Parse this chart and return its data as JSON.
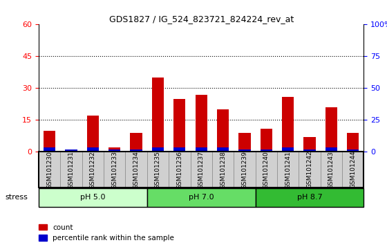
{
  "title": "GDS1827 / IG_524_823721_824224_rev_at",
  "samples": [
    "GSM101230",
    "GSM101231",
    "GSM101232",
    "GSM101233",
    "GSM101234",
    "GSM101235",
    "GSM101236",
    "GSM101237",
    "GSM101238",
    "GSM101239",
    "GSM101240",
    "GSM101241",
    "GSM101242",
    "GSM101243",
    "GSM101244"
  ],
  "count_values": [
    10,
    1,
    17,
    2,
    9,
    35,
    25,
    27,
    20,
    9,
    11,
    26,
    7,
    21,
    9
  ],
  "percentile_values": [
    2,
    1,
    2,
    1,
    1,
    2,
    2,
    2,
    2,
    1,
    1,
    2,
    1,
    2,
    1
  ],
  "groups": [
    {
      "label": "pH 5.0",
      "start": 0,
      "end": 5,
      "color": "#ccffcc"
    },
    {
      "label": "pH 7.0",
      "start": 5,
      "end": 10,
      "color": "#66dd66"
    },
    {
      "label": "pH 8.7",
      "start": 10,
      "end": 15,
      "color": "#33bb33"
    }
  ],
  "stress_label": "stress",
  "ylim_left": [
    0,
    60
  ],
  "ylim_right": [
    0,
    100
  ],
  "yticks_left": [
    0,
    15,
    30,
    45,
    60
  ],
  "yticks_right": [
    0,
    25,
    50,
    75,
    100
  ],
  "bar_color_count": "#cc0000",
  "bar_color_pct": "#0000cc",
  "bar_width": 0.55,
  "dotted_lines": [
    15,
    30,
    45
  ],
  "background_color": "#ffffff",
  "tick_bg_color": "#d0d0d0",
  "plot_bg_color": "#ffffff"
}
